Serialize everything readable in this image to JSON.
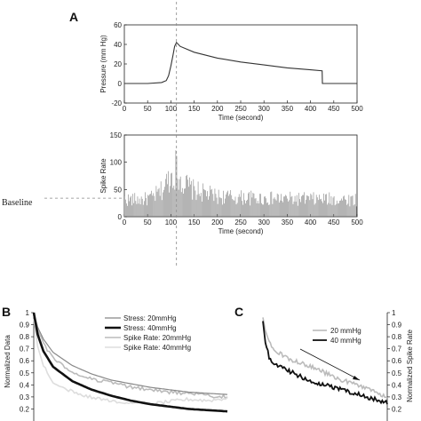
{
  "panel_labels": {
    "a": "A",
    "b": "B",
    "c": "C"
  },
  "baseline_label": "Baseline",
  "colors": {
    "axis": "#222222",
    "pressure_line": "#333333",
    "bars": "#777777",
    "dashed": "#888888",
    "thick": "#111111",
    "gray1": "#888888",
    "gray2": "#bbbbbb",
    "gray3": "#dddddd"
  },
  "chart_data": [
    {
      "id": "A_top",
      "type": "line",
      "xlabel": "Time (second)",
      "ylabel": "Pressure (mm Hg)",
      "xlim": [
        0,
        500
      ],
      "ylim": [
        -20,
        60
      ],
      "xticks": [
        0,
        50,
        100,
        150,
        200,
        250,
        300,
        350,
        400,
        450,
        500
      ],
      "yticks": [
        -20,
        0,
        20,
        40,
        60
      ],
      "series": [
        {
          "x": [
            0,
            50,
            80,
            90,
            95,
            100,
            105,
            108,
            112,
            120,
            150,
            200,
            250,
            300,
            350,
            400,
            425,
            425.5,
            430,
            500
          ],
          "y": [
            0,
            0,
            1,
            3,
            8,
            18,
            30,
            38,
            42,
            38,
            32,
            26,
            22,
            19,
            16,
            14,
            13,
            0,
            0,
            0
          ]
        }
      ]
    },
    {
      "id": "A_bottom",
      "type": "bar",
      "xlabel": "Time (second)",
      "ylabel": "Spike Rate",
      "xlim": [
        0,
        500
      ],
      "ylim": [
        0,
        150
      ],
      "xticks": [
        0,
        50,
        100,
        150,
        200,
        250,
        300,
        350,
        400,
        450,
        500
      ],
      "yticks": [
        0,
        50,
        100,
        150
      ],
      "profile_x": [
        0,
        40,
        60,
        80,
        95,
        110,
        125,
        150,
        200,
        300,
        400,
        500
      ],
      "profile_y": [
        34,
        34,
        38,
        52,
        75,
        92,
        68,
        52,
        40,
        36,
        35,
        34
      ],
      "peak": {
        "x": 110,
        "y": 122
      },
      "bin_width": 2
    },
    {
      "id": "B",
      "type": "line",
      "ylabel": "Normalized Data",
      "xlim": [
        0,
        100
      ],
      "ylim": [
        0.1,
        1.0
      ],
      "yticks": [
        0.2,
        0.3,
        0.4,
        0.5,
        0.6,
        0.7,
        0.8,
        0.9,
        1
      ],
      "series": [
        {
          "name": "Stress: 20mmHg",
          "x": [
            0,
            2,
            5,
            10,
            20,
            30,
            40,
            50,
            60,
            70,
            80,
            90,
            100
          ],
          "y": [
            1.0,
            0.88,
            0.78,
            0.67,
            0.56,
            0.49,
            0.44,
            0.41,
            0.38,
            0.36,
            0.34,
            0.33,
            0.32
          ]
        },
        {
          "name": "Stress: 40mmHg",
          "x": [
            0,
            2,
            5,
            10,
            20,
            30,
            40,
            50,
            60,
            70,
            80,
            90,
            100
          ],
          "y": [
            1.0,
            0.82,
            0.68,
            0.55,
            0.43,
            0.36,
            0.31,
            0.27,
            0.24,
            0.22,
            0.2,
            0.19,
            0.18
          ]
        },
        {
          "name": "Spike Rate: 20mmHg",
          "x": [
            0,
            2,
            5,
            10,
            20,
            30,
            40,
            50,
            60,
            70,
            80,
            90,
            100
          ],
          "y": [
            0.98,
            0.86,
            0.74,
            0.62,
            0.5,
            0.45,
            0.42,
            0.38,
            0.36,
            0.34,
            0.33,
            0.31,
            0.3
          ]
        },
        {
          "name": "Spike Rate: 40mmHg",
          "x": [
            0,
            2,
            5,
            10,
            20,
            30,
            40,
            50,
            60,
            70,
            80,
            90,
            100
          ],
          "y": [
            0.95,
            0.72,
            0.56,
            0.42,
            0.34,
            0.3,
            0.27,
            0.25,
            0.24,
            0.26,
            0.28,
            0.27,
            0.29
          ]
        }
      ]
    },
    {
      "id": "C",
      "type": "line",
      "ylabel": "Normalized Spike Rate",
      "xlim": [
        0,
        100
      ],
      "ylim": [
        0.1,
        1.0
      ],
      "yticks": [
        0.2,
        0.3,
        0.4,
        0.5,
        0.6,
        0.7,
        0.8,
        0.9,
        1
      ],
      "series": [
        {
          "name": "20 mmHg",
          "x": [
            0,
            2,
            5,
            10,
            20,
            30,
            40,
            50,
            60,
            70,
            80,
            90,
            100
          ],
          "y": [
            0.96,
            0.85,
            0.76,
            0.68,
            0.62,
            0.58,
            0.55,
            0.5,
            0.45,
            0.42,
            0.38,
            0.34,
            0.3
          ]
        },
        {
          "name": "40 mmHg",
          "x": [
            0,
            2,
            5,
            10,
            20,
            30,
            40,
            50,
            60,
            70,
            80,
            90,
            100
          ],
          "y": [
            0.93,
            0.75,
            0.63,
            0.57,
            0.52,
            0.47,
            0.43,
            0.4,
            0.37,
            0.34,
            0.31,
            0.28,
            0.25
          ]
        }
      ]
    }
  ]
}
